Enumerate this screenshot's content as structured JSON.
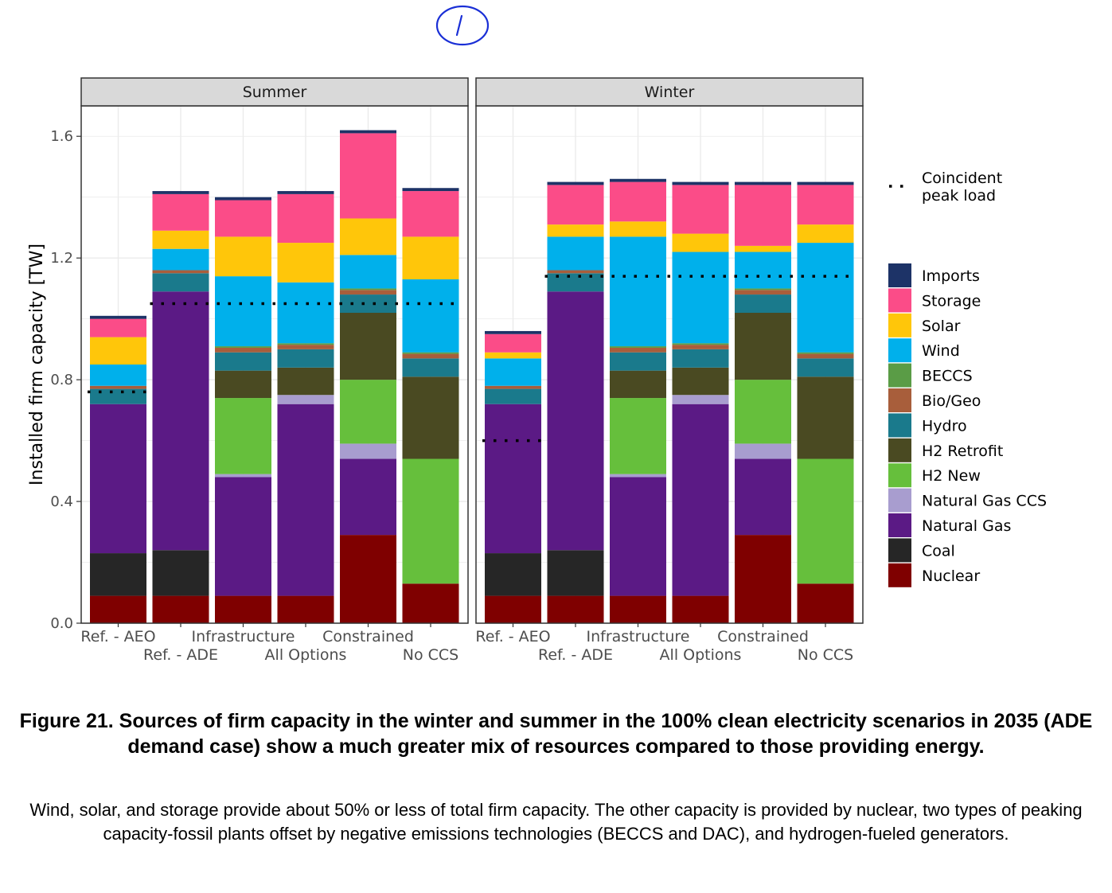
{
  "annotation": "1",
  "figure": {
    "title": "Figure 21. Sources of firm capacity in the winter and summer in the 100% clean electricity scenarios in 2035 (ADE demand case) show a much greater mix of resources compared to those providing energy.",
    "caption": "Wind, solar, and storage provide about 50% or less of total firm capacity. The other capacity is provided by nuclear, two types of peaking capacity-fossil plants offset by negative emissions technologies (BECCS and DAC), and hydrogen-fueled generators."
  },
  "chart_data": {
    "type": "bar",
    "stacked": true,
    "ylabel": "Installed firm capacity [TW]",
    "ylim": [
      0,
      1.7
    ],
    "yticks": [
      "0.0",
      "0.4",
      "0.8",
      "1.2",
      "1.6"
    ],
    "grid": true,
    "legend_position": "right",
    "categories": [
      "Ref. - AEO",
      "Ref. - ADE",
      "Infrastructure",
      "All Options",
      "Constrained",
      "No CCS"
    ],
    "technologies": [
      "Nuclear",
      "Coal",
      "Natural Gas",
      "Natural Gas CCS",
      "H2 New",
      "H2 Retrofit",
      "Hydro",
      "Bio/Geo",
      "BECCS",
      "Wind",
      "Solar",
      "Storage",
      "Imports"
    ],
    "colors": {
      "Nuclear": "#7f0000",
      "Coal": "#262626",
      "Natural Gas": "#5b1a85",
      "Natural Gas CCS": "#a89dcf",
      "H2 New": "#66bf3c",
      "H2 Retrofit": "#4a4a22",
      "Hydro": "#1a7a8c",
      "Bio/Geo": "#a85e3b",
      "BECCS": "#5a9c46",
      "Wind": "#00b0eb",
      "Solar": "#ffc60a",
      "Storage": "#fb4c88",
      "Imports": "#1d3367"
    },
    "legend": {
      "peak_label_line1": "Coincident",
      "peak_label_line2": "peak load",
      "items": [
        "Imports",
        "Storage",
        "Solar",
        "Wind",
        "BECCS",
        "Bio/Geo",
        "Hydro",
        "H2 Retrofit",
        "H2 New",
        "Natural Gas CCS",
        "Natural Gas",
        "Coal",
        "Nuclear"
      ]
    },
    "panels": [
      {
        "name": "Summer",
        "peak_load": [
          0.76,
          1.05,
          1.05,
          1.05,
          1.05,
          1.05
        ],
        "series": [
          {
            "name": "Nuclear",
            "values": [
              0.09,
              0.09,
              0.09,
              0.09,
              0.29,
              0.13
            ]
          },
          {
            "name": "Coal",
            "values": [
              0.14,
              0.15,
              0.0,
              0.0,
              0.0,
              0.0
            ]
          },
          {
            "name": "Natural Gas",
            "values": [
              0.49,
              0.85,
              0.39,
              0.63,
              0.25,
              0.0
            ]
          },
          {
            "name": "Natural Gas CCS",
            "values": [
              0.0,
              0.0,
              0.01,
              0.03,
              0.05,
              0.0
            ]
          },
          {
            "name": "H2 New",
            "values": [
              0.0,
              0.0,
              0.25,
              0.0,
              0.21,
              0.41
            ]
          },
          {
            "name": "H2 Retrofit",
            "values": [
              0.0,
              0.0,
              0.09,
              0.09,
              0.22,
              0.27
            ]
          },
          {
            "name": "Hydro",
            "values": [
              0.05,
              0.06,
              0.06,
              0.06,
              0.06,
              0.06
            ]
          },
          {
            "name": "Bio/Geo",
            "values": [
              0.01,
              0.01,
              0.015,
              0.015,
              0.015,
              0.015
            ]
          },
          {
            "name": "BECCS",
            "values": [
              0.0,
              0.0,
              0.005,
              0.005,
              0.005,
              0.005
            ]
          },
          {
            "name": "Wind",
            "values": [
              0.07,
              0.07,
              0.23,
              0.2,
              0.11,
              0.24
            ]
          },
          {
            "name": "Solar",
            "values": [
              0.09,
              0.06,
              0.13,
              0.13,
              0.12,
              0.14
            ]
          },
          {
            "name": "Storage",
            "values": [
              0.06,
              0.12,
              0.12,
              0.16,
              0.28,
              0.15
            ]
          },
          {
            "name": "Imports",
            "values": [
              0.01,
              0.01,
              0.01,
              0.01,
              0.01,
              0.01
            ]
          }
        ]
      },
      {
        "name": "Winter",
        "peak_load": [
          0.6,
          1.14,
          1.14,
          1.14,
          1.14,
          1.14
        ],
        "series": [
          {
            "name": "Nuclear",
            "values": [
              0.09,
              0.09,
              0.09,
              0.09,
              0.29,
              0.13
            ]
          },
          {
            "name": "Coal",
            "values": [
              0.14,
              0.15,
              0.0,
              0.0,
              0.0,
              0.0
            ]
          },
          {
            "name": "Natural Gas",
            "values": [
              0.49,
              0.85,
              0.39,
              0.63,
              0.25,
              0.0
            ]
          },
          {
            "name": "Natural Gas CCS",
            "values": [
              0.0,
              0.0,
              0.01,
              0.03,
              0.05,
              0.0
            ]
          },
          {
            "name": "H2 New",
            "values": [
              0.0,
              0.0,
              0.25,
              0.0,
              0.21,
              0.41
            ]
          },
          {
            "name": "H2 Retrofit",
            "values": [
              0.0,
              0.0,
              0.09,
              0.09,
              0.22,
              0.27
            ]
          },
          {
            "name": "Hydro",
            "values": [
              0.05,
              0.06,
              0.06,
              0.06,
              0.06,
              0.06
            ]
          },
          {
            "name": "Bio/Geo",
            "values": [
              0.01,
              0.01,
              0.015,
              0.015,
              0.015,
              0.015
            ]
          },
          {
            "name": "BECCS",
            "values": [
              0.0,
              0.0,
              0.005,
              0.005,
              0.005,
              0.005
            ]
          },
          {
            "name": "Wind",
            "values": [
              0.09,
              0.11,
              0.36,
              0.3,
              0.12,
              0.36
            ]
          },
          {
            "name": "Solar",
            "values": [
              0.02,
              0.04,
              0.05,
              0.06,
              0.02,
              0.06
            ]
          },
          {
            "name": "Storage",
            "values": [
              0.06,
              0.13,
              0.13,
              0.16,
              0.2,
              0.13
            ]
          },
          {
            "name": "Imports",
            "values": [
              0.01,
              0.01,
              0.01,
              0.01,
              0.01,
              0.01
            ]
          }
        ]
      }
    ]
  }
}
